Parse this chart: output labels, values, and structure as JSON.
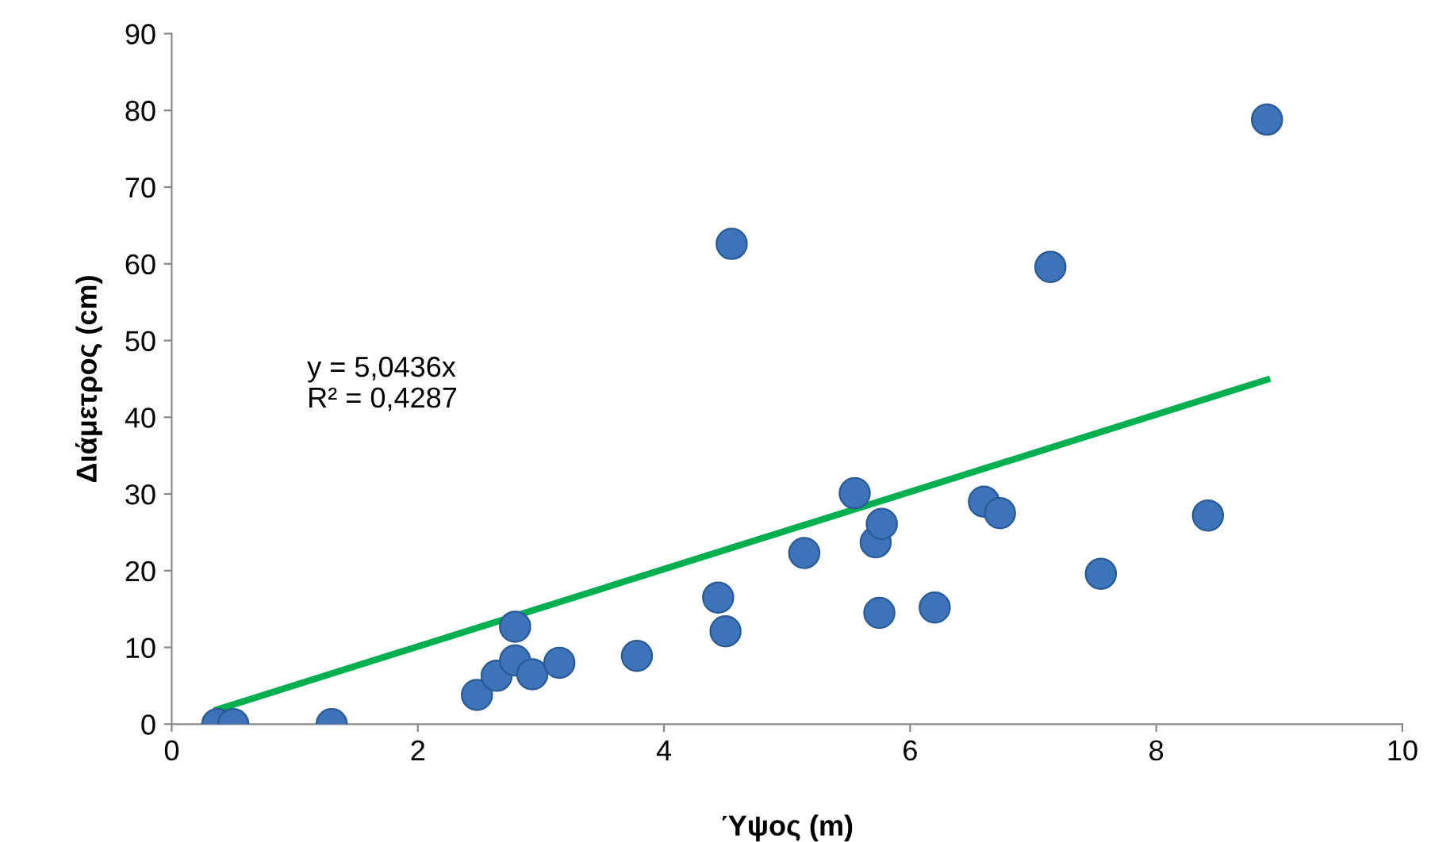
{
  "chart_data": {
    "type": "scatter",
    "xlabel": "Ύψος (m)",
    "ylabel": "Διάμετρος (cm)",
    "xlim": [
      0,
      10
    ],
    "ylim": [
      0,
      90
    ],
    "xticks": [
      0,
      2,
      4,
      6,
      8,
      10
    ],
    "yticks": [
      0,
      10,
      20,
      30,
      40,
      50,
      60,
      70,
      80,
      90
    ],
    "grid": false,
    "legend": false,
    "series": [
      {
        "marker": "circle",
        "color": "#3d73b9",
        "x": [
          0.37,
          0.5,
          1.3,
          2.48,
          2.64,
          2.79,
          2.79,
          2.93,
          3.15,
          3.78,
          4.44,
          4.5,
          4.55,
          5.14,
          5.55,
          5.72,
          5.77,
          5.75,
          6.2,
          6.6,
          6.73,
          7.14,
          7.55,
          8.42,
          8.9
        ],
        "values": [
          0,
          0,
          0,
          3.8,
          6.3,
          8.3,
          12.7,
          6.5,
          8.0,
          8.9,
          16.5,
          12.1,
          62.6,
          22.3,
          30.1,
          23.7,
          26.1,
          14.5,
          15.2,
          29.0,
          27.5,
          59.6,
          19.6,
          27.2,
          78.8
        ]
      },
      {
        "type": "line",
        "color": "#00b050",
        "x": [
          0.37,
          8.9
        ],
        "values": [
          1.9,
          44.9
        ]
      }
    ],
    "annotations": [
      "y = 5,0436x\nR² = 0,4287"
    ]
  }
}
